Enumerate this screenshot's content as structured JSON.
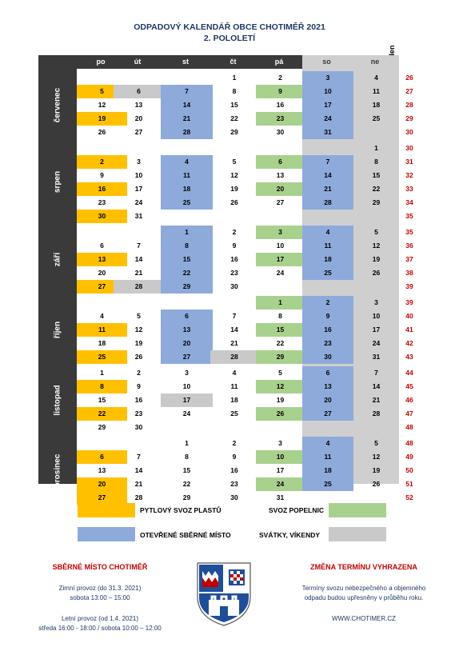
{
  "title": {
    "line1": "ODPADOVÝ KALENDÁŘ OBCE CHOTIMĚŘ 2021",
    "line2": "2. POLOLETÍ"
  },
  "colors": {
    "plast": "#ffc000",
    "popelnice": "#a9d18e",
    "sberne": "#8eaadb",
    "svatek": "#c9c9c9",
    "dark": "#3a3a3a"
  },
  "header": {
    "days": [
      "po",
      "út",
      "st",
      "čt",
      "pá",
      "so",
      "ne"
    ],
    "week_label": "Týden"
  },
  "months": [
    {
      "name": "červenec",
      "rows": [
        {
          "week": "26",
          "days": [
            "",
            "",
            "",
            "1",
            "2",
            "3",
            "4"
          ],
          "c": [
            "",
            "",
            "",
            "",
            "",
            "b",
            ""
          ]
        },
        {
          "week": "27",
          "days": [
            "5",
            "6",
            "7",
            "8",
            "9",
            "10",
            "11"
          ],
          "c": [
            "y",
            "g",
            "b",
            "",
            "gr",
            "b",
            ""
          ]
        },
        {
          "week": "28",
          "days": [
            "12",
            "13",
            "14",
            "15",
            "16",
            "17",
            "18"
          ],
          "c": [
            "",
            "",
            "b",
            "",
            "",
            "b",
            ""
          ]
        },
        {
          "week": "29",
          "days": [
            "19",
            "20",
            "21",
            "22",
            "23",
            "24",
            "25"
          ],
          "c": [
            "y",
            "",
            "b",
            "",
            "gr",
            "b",
            ""
          ]
        },
        {
          "week": "30",
          "days": [
            "26",
            "27",
            "28",
            "29",
            "30",
            "31",
            ""
          ],
          "c": [
            "",
            "",
            "b",
            "",
            "",
            "b",
            ""
          ]
        }
      ]
    },
    {
      "name": "srpen",
      "rows": [
        {
          "week": "30",
          "days": [
            "",
            "",
            "",
            "",
            "",
            "",
            "1"
          ],
          "c": [
            "",
            "",
            "",
            "",
            "",
            "",
            ""
          ]
        },
        {
          "week": "31",
          "days": [
            "2",
            "3",
            "4",
            "5",
            "6",
            "7",
            "8"
          ],
          "c": [
            "y",
            "",
            "b",
            "",
            "gr",
            "b",
            ""
          ]
        },
        {
          "week": "32",
          "days": [
            "9",
            "10",
            "11",
            "12",
            "13",
            "14",
            "15"
          ],
          "c": [
            "",
            "",
            "b",
            "",
            "",
            "b",
            ""
          ]
        },
        {
          "week": "33",
          "days": [
            "16",
            "17",
            "18",
            "19",
            "20",
            "21",
            "22"
          ],
          "c": [
            "y",
            "",
            "b",
            "",
            "gr",
            "b",
            ""
          ]
        },
        {
          "week": "34",
          "days": [
            "23",
            "24",
            "25",
            "26",
            "27",
            "28",
            "29"
          ],
          "c": [
            "",
            "",
            "b",
            "",
            "",
            "b",
            ""
          ]
        },
        {
          "week": "35",
          "days": [
            "30",
            "31",
            "",
            "",
            "",
            "",
            ""
          ],
          "c": [
            "y",
            "",
            "",
            "",
            "",
            "",
            ""
          ]
        }
      ]
    },
    {
      "name": "září",
      "rows": [
        {
          "week": "35",
          "days": [
            "",
            "",
            "1",
            "2",
            "3",
            "4",
            "5"
          ],
          "c": [
            "",
            "",
            "b",
            "",
            "gr",
            "b",
            ""
          ]
        },
        {
          "week": "36",
          "days": [
            "6",
            "7",
            "8",
            "9",
            "10",
            "11",
            "12"
          ],
          "c": [
            "",
            "",
            "b",
            "",
            "",
            "b",
            ""
          ]
        },
        {
          "week": "37",
          "days": [
            "13",
            "14",
            "15",
            "16",
            "17",
            "18",
            "19"
          ],
          "c": [
            "y",
            "",
            "b",
            "",
            "gr",
            "b",
            ""
          ]
        },
        {
          "week": "38",
          "days": [
            "20",
            "21",
            "22",
            "23",
            "24",
            "25",
            "26"
          ],
          "c": [
            "",
            "",
            "b",
            "",
            "",
            "b",
            ""
          ]
        },
        {
          "week": "39",
          "days": [
            "27",
            "28",
            "29",
            "30",
            "",
            "",
            ""
          ],
          "c": [
            "y",
            "g",
            "b",
            "",
            "",
            "",
            ""
          ]
        }
      ]
    },
    {
      "name": "říjen",
      "rows": [
        {
          "week": "39",
          "days": [
            "",
            "",
            "",
            "",
            "1",
            "2",
            "3"
          ],
          "c": [
            "",
            "",
            "",
            "",
            "gr",
            "b",
            ""
          ]
        },
        {
          "week": "40",
          "days": [
            "4",
            "5",
            "6",
            "7",
            "8",
            "9",
            "10"
          ],
          "c": [
            "",
            "",
            "b",
            "",
            "",
            "b",
            ""
          ]
        },
        {
          "week": "41",
          "days": [
            "11",
            "12",
            "13",
            "14",
            "15",
            "16",
            "17"
          ],
          "c": [
            "y",
            "",
            "b",
            "",
            "gr",
            "b",
            ""
          ]
        },
        {
          "week": "42",
          "days": [
            "18",
            "19",
            "20",
            "21",
            "22",
            "23",
            "24"
          ],
          "c": [
            "",
            "",
            "b",
            "",
            "",
            "b",
            ""
          ]
        },
        {
          "week": "43",
          "days": [
            "25",
            "26",
            "27",
            "28",
            "29",
            "30",
            "31"
          ],
          "c": [
            "y",
            "",
            "b",
            "g",
            "gr",
            "b",
            ""
          ]
        }
      ]
    },
    {
      "name": "listopad",
      "rows": [
        {
          "week": "44",
          "days": [
            "1",
            "2",
            "3",
            "4",
            "5",
            "6",
            "7"
          ],
          "c": [
            "",
            "",
            "",
            "",
            "",
            "b",
            ""
          ]
        },
        {
          "week": "45",
          "days": [
            "8",
            "9",
            "10",
            "11",
            "12",
            "13",
            "14"
          ],
          "c": [
            "y",
            "",
            "",
            "",
            "gr",
            "b",
            ""
          ]
        },
        {
          "week": "46",
          "days": [
            "15",
            "16",
            "17",
            "18",
            "19",
            "20",
            "21"
          ],
          "c": [
            "",
            "",
            "g",
            "",
            "",
            "b",
            ""
          ]
        },
        {
          "week": "47",
          "days": [
            "22",
            "23",
            "24",
            "25",
            "26",
            "27",
            "28"
          ],
          "c": [
            "y",
            "",
            "",
            "",
            "gr",
            "b",
            ""
          ]
        },
        {
          "week": "48",
          "days": [
            "29",
            "30",
            "",
            "",
            "",
            "",
            ""
          ],
          "c": [
            "",
            "",
            "",
            "",
            "",
            "",
            ""
          ]
        }
      ]
    },
    {
      "name": "prosinec",
      "rows": [
        {
          "week": "48",
          "days": [
            "",
            "",
            "1",
            "2",
            "3",
            "4",
            "5"
          ],
          "c": [
            "",
            "",
            "",
            "",
            "",
            "b",
            ""
          ]
        },
        {
          "week": "49",
          "days": [
            "6",
            "7",
            "8",
            "9",
            "10",
            "11",
            "12"
          ],
          "c": [
            "y",
            "",
            "",
            "",
            "gr",
            "b",
            ""
          ]
        },
        {
          "week": "50",
          "days": [
            "13",
            "14",
            "15",
            "16",
            "17",
            "18",
            "19"
          ],
          "c": [
            "",
            "",
            "",
            "",
            "",
            "b",
            ""
          ]
        },
        {
          "week": "51",
          "days": [
            "20",
            "21",
            "22",
            "23",
            "24",
            "25",
            "26"
          ],
          "c": [
            "y",
            "",
            "",
            "",
            "gr",
            "b",
            ""
          ]
        },
        {
          "week": "52",
          "days": [
            "27",
            "28",
            "29",
            "30",
            "31",
            "",
            ""
          ],
          "c": [
            "y",
            "",
            "",
            "",
            "",
            "",
            ""
          ]
        }
      ]
    }
  ],
  "legend": {
    "plast": "PYTLOVÝ SVOZ PLASTŮ",
    "popelnice": "SVOZ POPELNIC",
    "sberne": "OTEVŘENÉ SBĚRNÉ MÍSTO",
    "svatek": "SVÁTKY, VÍKENDY"
  },
  "footer": {
    "left_title": "SBĚRNÉ MÍSTO CHOTIMĚŘ",
    "winter_line1": "Zimní provoz (do 31.3. 2021)",
    "winter_line2": "sobota 13:00 – 15:00",
    "summer_line1": "Letní provoz (od 1.4. 2021)",
    "summer_line2": "středa 16:00 - 18:00 / sobota 10:00 – 12:00",
    "right_title": "ZMĚNA TERMÍNU VYHRAZENA",
    "note_line1": "Termíny svozu nebezpečného a objemného",
    "note_line2": "odpadu budou upřesněny v průběhu roku.",
    "web": "WWW.CHOTIMER.CZ"
  }
}
